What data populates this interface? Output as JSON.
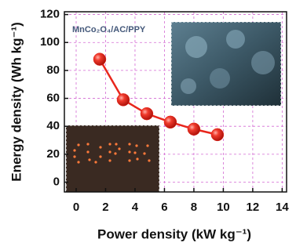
{
  "chart_data": {
    "type": "line",
    "annotation": "MnCo₂O₄/AC/PPY",
    "xlabel": "Power density (kW kg⁻¹)",
    "ylabel": "Energy density (Wh kg⁻¹)",
    "x": [
      1.6,
      3.2,
      4.8,
      6.4,
      8.0,
      9.6
    ],
    "series": [
      {
        "color": "#e8261c",
        "values": [
          88,
          59,
          49,
          43,
          38,
          34
        ]
      }
    ],
    "xlim": [
      -0.8,
      14.3
    ],
    "xticks": [
      0,
      2,
      4,
      6,
      8,
      10,
      12,
      14
    ],
    "ylim": [
      -7,
      122
    ],
    "yticks": [
      0,
      20,
      40,
      60,
      80,
      100,
      120
    ],
    "grid": true
  }
}
